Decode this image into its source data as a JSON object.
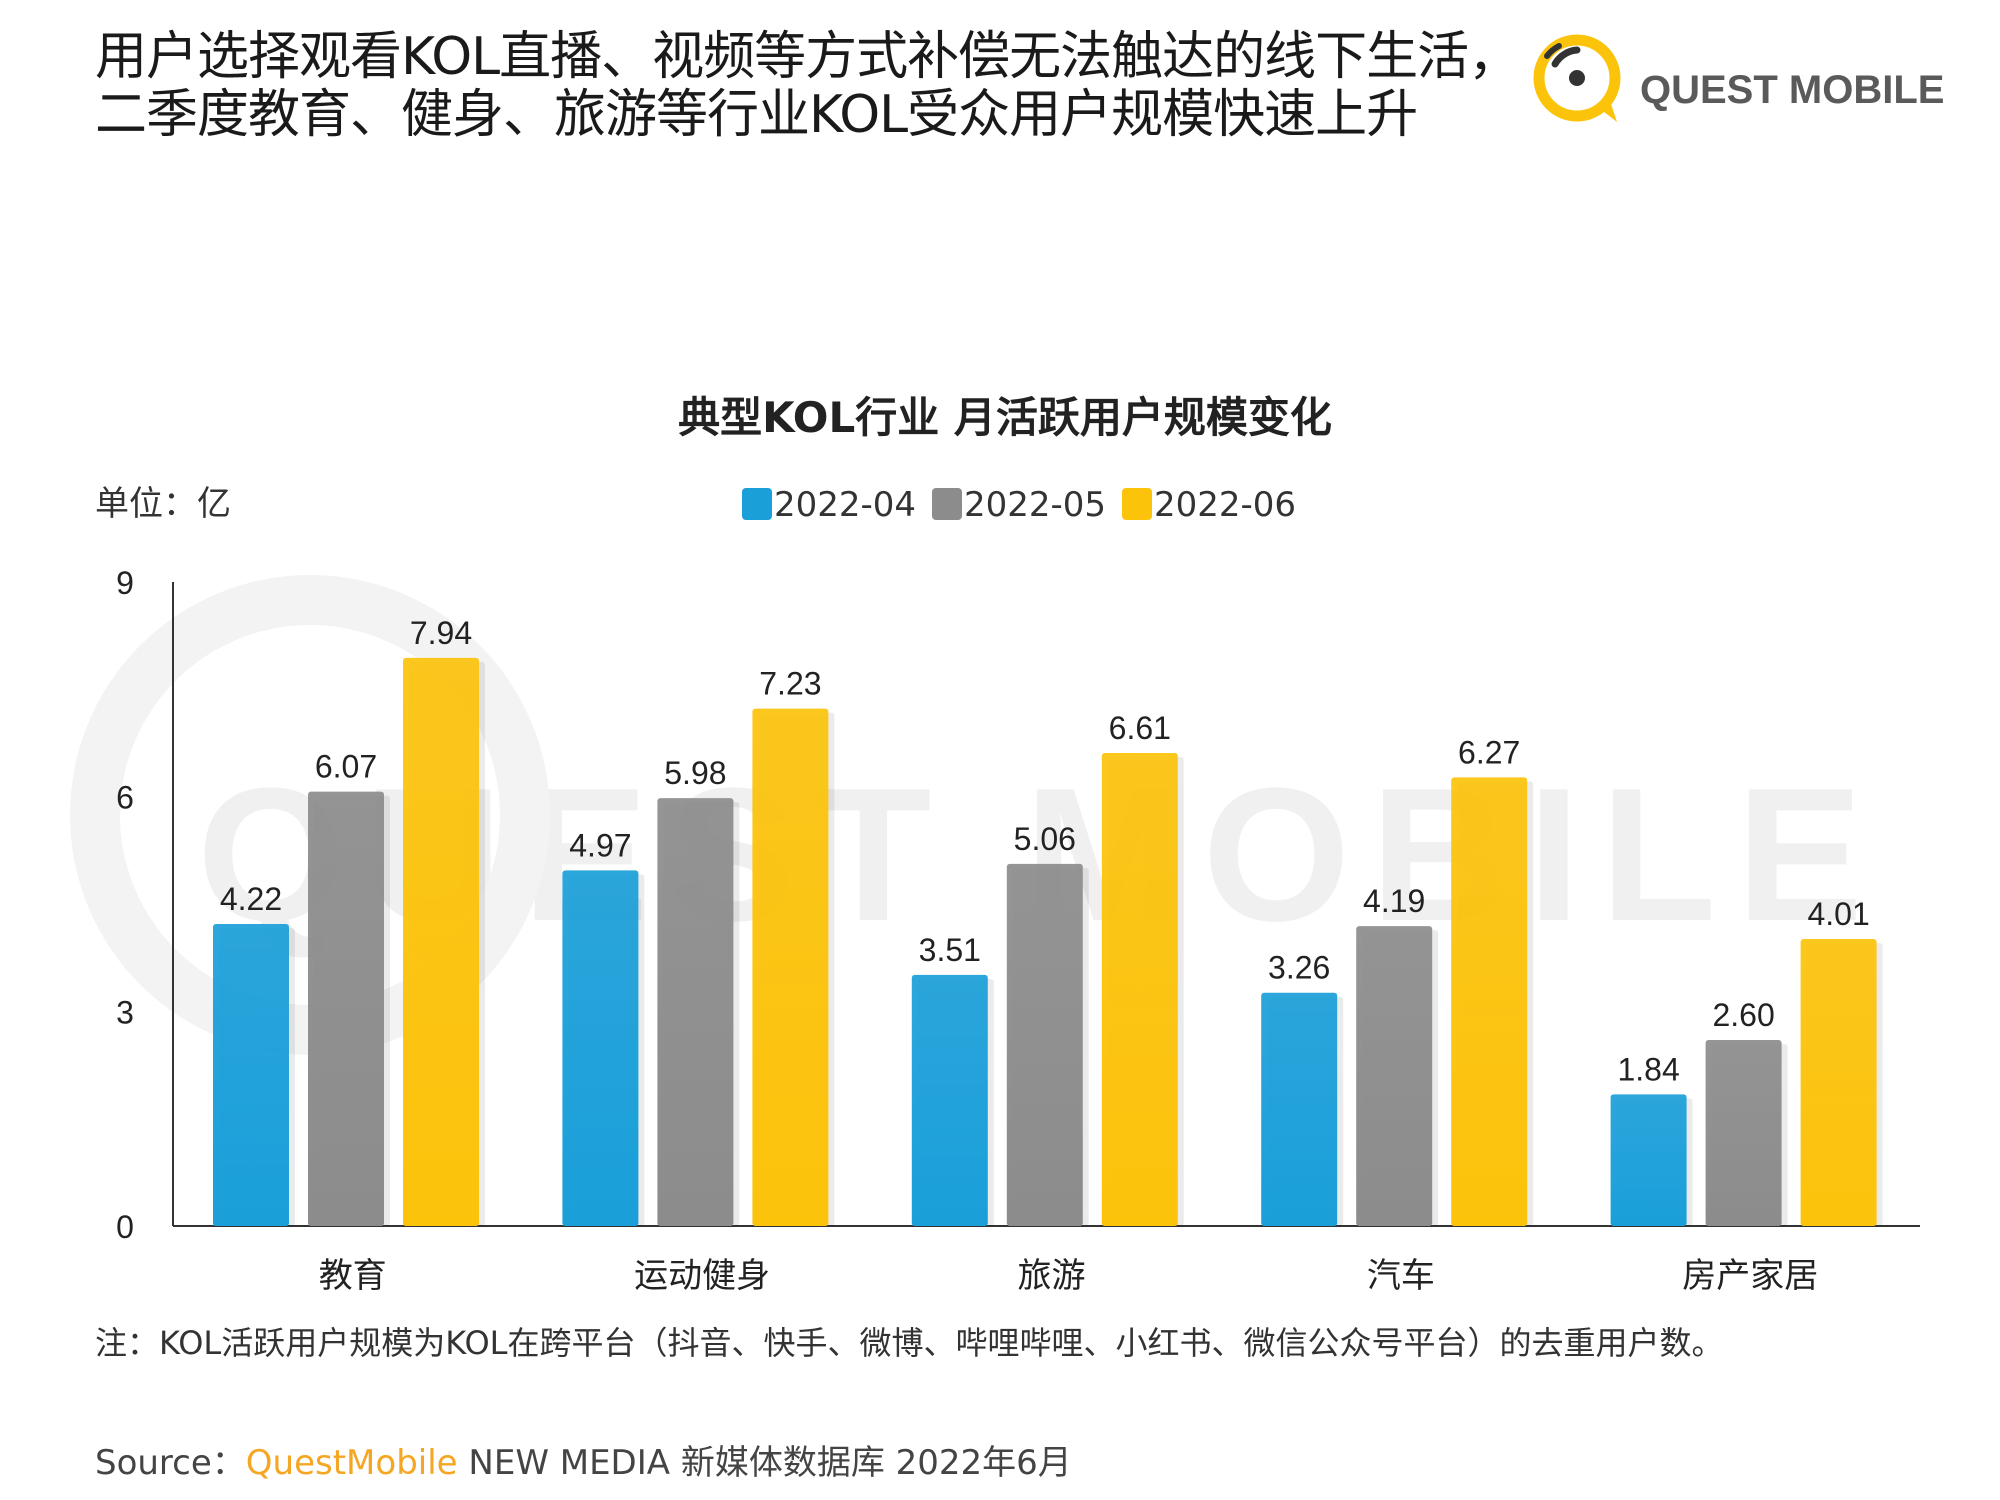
{
  "headline": {
    "line1": "用户选择观看KOL直播、视频等方式补偿无法触达的线下生活，",
    "line2": "二季度教育、健身、旅游等行业KOL受众用户规模快速上升"
  },
  "logo": {
    "text": "QUEST MOBILE",
    "icon": "quest-mobile-logo-icon"
  },
  "watermark": "QUEST MOBILE",
  "colors": {
    "blue": "#1a9fd9",
    "gray": "#8c8c8c",
    "yellow": "#fcc30b",
    "brand": "#f5a623"
  },
  "chart_data": {
    "type": "bar",
    "title": "典型KOL行业 月活跃用户规模变化",
    "unit_label": "单位：亿",
    "categories": [
      "教育",
      "运动健身",
      "旅游",
      "汽车",
      "房产家居"
    ],
    "series": [
      {
        "name": "2022-04",
        "color": "#1a9fd9",
        "values": [
          4.22,
          4.97,
          3.51,
          3.26,
          1.84
        ],
        "labels": [
          "4.22",
          "4.97",
          "3.51",
          "3.26",
          "1.84"
        ]
      },
      {
        "name": "2022-05",
        "color": "#8c8c8c",
        "values": [
          6.07,
          5.98,
          5.06,
          4.19,
          2.6
        ],
        "labels": [
          "6.07",
          "5.98",
          "5.06",
          "4.19",
          "2.60"
        ]
      },
      {
        "name": "2022-06",
        "color": "#fcc30b",
        "values": [
          7.94,
          7.23,
          6.61,
          6.27,
          4.01
        ],
        "labels": [
          "7.94",
          "7.23",
          "6.61",
          "6.27",
          "4.01"
        ]
      }
    ],
    "yticks": [
      "0",
      "3",
      "6",
      "9"
    ],
    "ylim": [
      0,
      9
    ],
    "legend_position": "top-center",
    "grid": false
  },
  "footnote": "注：KOL活跃用户规模为KOL在跨平台（抖音、快手、微博、哔哩哔哩、小红书、微信公众号平台）的去重用户数。",
  "source": {
    "prefix": "Source：",
    "brand": "QuestMobile",
    "rest": " NEW MEDIA 新媒体数据库 2022年6月"
  }
}
